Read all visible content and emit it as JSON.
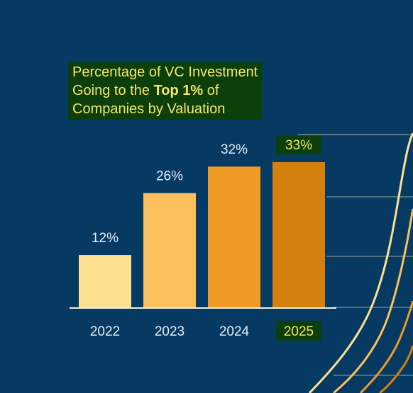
{
  "chart_data": {
    "type": "bar",
    "title_lines": [
      {
        "parts": [
          {
            "text": "Percentage of VC Investment",
            "bold": false
          }
        ]
      },
      {
        "parts": [
          {
            "text": "Going to the ",
            "bold": false
          },
          {
            "text": "Top 1%",
            "bold": true
          },
          {
            "text": " of",
            "bold": false
          }
        ]
      },
      {
        "parts": [
          {
            "text": "Companies by Valuation",
            "bold": false
          }
        ]
      }
    ],
    "categories": [
      "2022",
      "2023",
      "2024",
      "2025"
    ],
    "values": [
      12,
      26,
      32,
      33
    ],
    "value_labels": [
      "12%",
      "26%",
      "32%",
      "33%"
    ],
    "ylim": [
      0,
      35
    ],
    "highlighted_category": "2025",
    "bar_colors": [
      "#fde08f",
      "#fbc05c",
      "#f09a26",
      "#d4800f"
    ],
    "grid": false,
    "legend": "none"
  },
  "colors": {
    "background": "#063a63",
    "highlight_bg": "#0c3f0c",
    "highlight_text": "#f3e66b",
    "label_text": "#e6eef5",
    "baseline": "#f1ece0"
  }
}
